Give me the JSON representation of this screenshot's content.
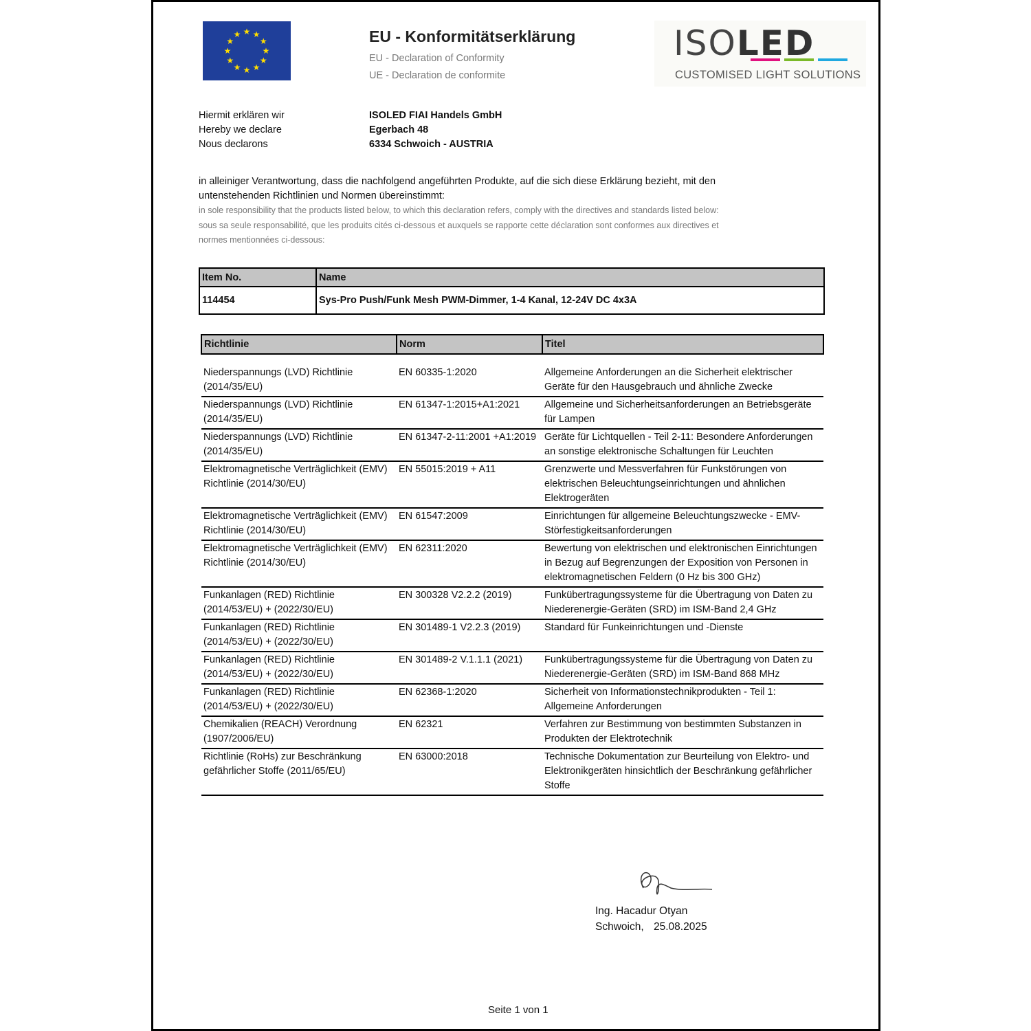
{
  "header": {
    "title": "EU - Konformitätserklärung",
    "subtitle_en": "EU - Declaration of Conformity",
    "subtitle_fr": "UE - Declaration de conformite"
  },
  "logo": {
    "text": "ISOLED",
    "tagline": "CUSTOMISED LIGHT SOLUTIONS",
    "colors": [
      "#e0117f",
      "#7ab929",
      "#1fa8e0"
    ]
  },
  "declarant": {
    "labels": [
      "Hiermit erklären wir",
      "Hereby we declare",
      "Nous declarons"
    ],
    "address": [
      "ISOLED FIAI Handels GmbH",
      "Egerbach 48",
      "6334 Schwoich - AUSTRIA"
    ]
  },
  "intro": {
    "de": "in alleiniger Verantwortung, dass die nachfolgend angeführten Produkte, auf die sich diese Erklärung bezieht, mit den untenstehenden Richtlinien und Normen übereinstimmt:",
    "en": "in sole responsibility that the products listed below, to which this declaration refers, comply with the directives and standards listed below:",
    "fr": "sous sa seule responsabilité, que les produits cités ci-dessous et auxquels se rapporte cette déclaration sont conformes aux directives et normes mentionnées ci-dessous:"
  },
  "product_table": {
    "headers": [
      "Item No.",
      "Name"
    ],
    "item_no": "114454",
    "name": "Sys-Pro Push/Funk Mesh PWM-Dimmer, 1-4 Kanal, 12-24V DC 4x3A"
  },
  "standards_table": {
    "headers": [
      "Richtlinie",
      "Norm",
      "Titel"
    ],
    "rows": [
      [
        "Niederspannungs (LVD) Richtlinie (2014/35/EU)",
        "EN 60335-1:2020",
        "Allgemeine Anforderungen an die Sicherheit elektrischer Geräte für den Hausgebrauch und ähnliche Zwecke"
      ],
      [
        "Niederspannungs (LVD) Richtlinie (2014/35/EU)",
        "EN 61347-1:2015+A1:2021",
        "Allgemeine und Sicherheitsanforderungen an Betriebsgeräte für Lampen"
      ],
      [
        "Niederspannungs (LVD) Richtlinie (2014/35/EU)",
        "EN 61347-2-11:2001 +A1:2019",
        "Geräte für Lichtquellen - Teil 2-11: Besondere Anforderungen an sonstige elektronische Schaltungen für Leuchten"
      ],
      [
        "Elektromagnetische Verträglichkeit (EMV) Richtlinie (2014/30/EU)",
        "EN 55015:2019 + A11",
        "Grenzwerte und Messverfahren für Funkstörungen von elektrischen Beleuchtungseinrichtungen und ähnlichen Elektrogeräten"
      ],
      [
        "Elektromagnetische Verträglichkeit (EMV) Richtlinie (2014/30/EU)",
        "EN 61547:2009",
        "Einrichtungen für allgemeine Beleuchtungszwecke - EMV-Störfestigkeitsanforderungen"
      ],
      [
        "Elektromagnetische Verträglichkeit (EMV) Richtlinie (2014/30/EU)",
        "EN 62311:2020",
        "Bewertung von elektrischen und elektronischen Einrichtungen in Bezug auf Begrenzungen der Exposition von Personen in elektromagnetischen Feldern (0 Hz bis 300 GHz)"
      ],
      [
        "Funkanlagen (RED) Richtlinie (2014/53/EU) + (2022/30/EU)",
        "EN 300328 V2.2.2 (2019)",
        "Funkübertragungssysteme für die Übertragung von Daten zu Niederenergie-Geräten (SRD) im ISM-Band 2,4 GHz"
      ],
      [
        "Funkanlagen (RED) Richtlinie (2014/53/EU) + (2022/30/EU)",
        "EN 301489-1 V2.2.3 (2019)",
        "Standard für Funkeinrichtungen und -Dienste"
      ],
      [
        "Funkanlagen (RED) Richtlinie (2014/53/EU) + (2022/30/EU)",
        "EN 301489-2 V.1.1.1 (2021)",
        "Funkübertragungssysteme für die Übertragung von Daten zu Niederenergie-Geräten (SRD) im ISM-Band 868 MHz"
      ],
      [
        "Funkanlagen (RED) Richtlinie (2014/53/EU) + (2022/30/EU)",
        "EN 62368-1:2020",
        "Sicherheit von Informationstechnikprodukten - Teil 1: Allgemeine Anforderungen"
      ],
      [
        "Chemikalien (REACH) Verordnung (1907/2006/EU)",
        "EN 62321",
        "Verfahren zur Bestimmung von bestimmten Substanzen in Produkten der Elektrotechnik"
      ],
      [
        "Richtlinie (RoHs) zur Beschränkung gefährlicher Stoffe (2011/65/EU)",
        "EN 63000:2018",
        "Technische Dokumentation zur Beurteilung von Elektro- und Elektronikgeräten hinsichtlich der Beschränkung gefährlicher Stoffe"
      ]
    ]
  },
  "signature": {
    "name": "Ing. Hacadur Otyan",
    "place": "Schwoich,",
    "date": "25.08.2025"
  },
  "footer": {
    "page": "Seite 1 von 1"
  }
}
